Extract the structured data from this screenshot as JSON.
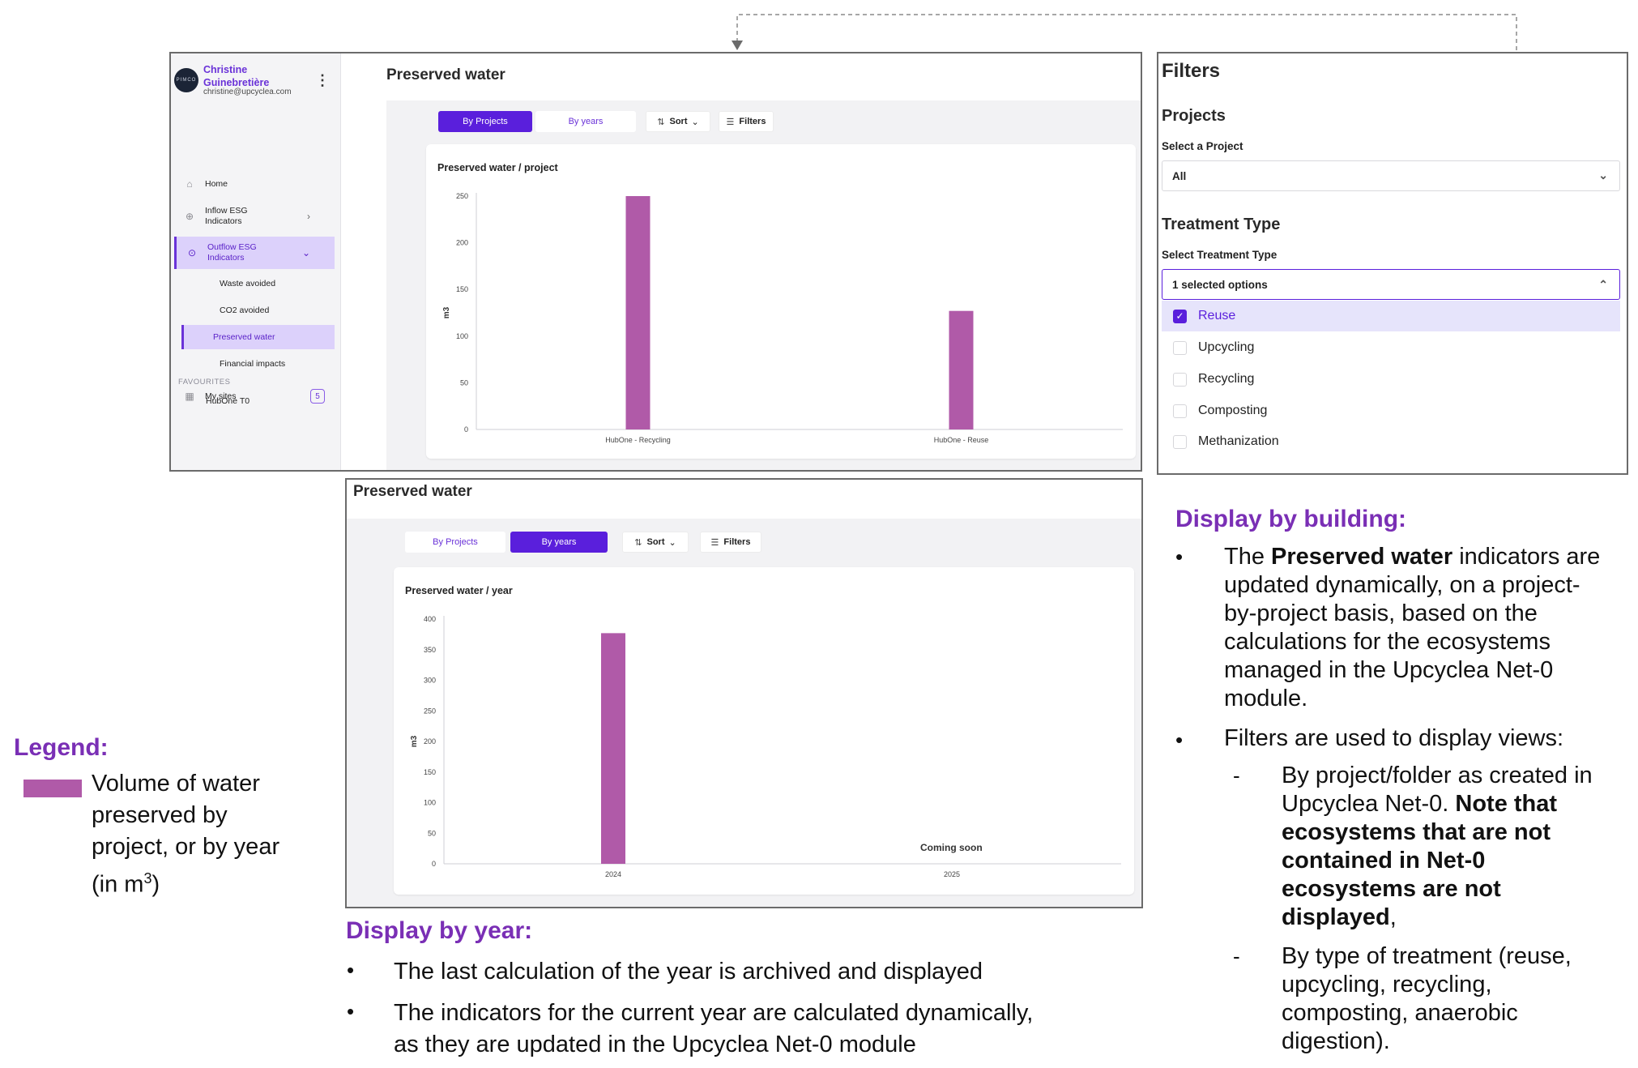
{
  "sidebar": {
    "avatar_text": "PIMCO",
    "user_name": "Christine Guinebretière",
    "user_email": "christine@upcyclea.com",
    "nav": {
      "home": "Home",
      "inflow": "Inflow ESG Indicators",
      "outflow": "Outflow ESG Indicators",
      "sub_waste": "Waste avoided",
      "sub_co2": "CO2 avoided",
      "sub_water": "Preserved water",
      "sub_financial": "Financial impacts",
      "my_sites": "My sites",
      "my_sites_count": "5"
    },
    "favourites_title": "FAVOURITES",
    "favourite_item": "HubOne T0"
  },
  "top_view": {
    "page_title": "Preserved water",
    "tab_projects": "By Projects",
    "tab_years": "By years",
    "sort_label": "Sort",
    "filters_label": "Filters",
    "card_title": "Preserved water / project"
  },
  "bottom_view": {
    "page_title": "Preserved water",
    "tab_projects": "By Projects",
    "tab_years": "By years",
    "sort_label": "Sort",
    "filters_label": "Filters",
    "card_title": "Preserved water / year",
    "coming_soon": "Coming soon"
  },
  "chart_data": [
    {
      "type": "bar",
      "title": "Preserved water / project",
      "ylabel": "m3",
      "categories": [
        "HubOne - Recycling",
        "HubOne - Reuse"
      ],
      "values": [
        250,
        127
      ],
      "ylim": [
        0,
        250
      ],
      "yticks": [
        0,
        50,
        100,
        150,
        200,
        250
      ],
      "color": "#b05aa8"
    },
    {
      "type": "bar",
      "title": "Preserved water / year",
      "ylabel": "m3",
      "categories": [
        "2024",
        "2025"
      ],
      "values": [
        377,
        null
      ],
      "ylim": [
        0,
        400
      ],
      "yticks": [
        0,
        50,
        100,
        150,
        200,
        250,
        300,
        350,
        400
      ],
      "color": "#b05aa8"
    }
  ],
  "filters_panel": {
    "title": "Filters",
    "projects_heading": "Projects",
    "project_label": "Select a Project",
    "project_value": "All",
    "treatment_heading": "Treatment Type",
    "treatment_label": "Select Treatment Type",
    "treatment_value": "1 selected options",
    "options": [
      {
        "label": "Reuse",
        "checked": true
      },
      {
        "label": "Upcycling",
        "checked": false
      },
      {
        "label": "Recycling",
        "checked": false
      },
      {
        "label": "Composting",
        "checked": false
      },
      {
        "label": "Methanization",
        "checked": false
      }
    ]
  },
  "legend": {
    "title": "Legend:",
    "line1": "Volume of water",
    "line2": "preserved by",
    "line3": "project, or by year",
    "line4_pre": "(in m",
    "line4_sup": "3",
    "line4_post": ")",
    "swatch_color": "#b05aa8"
  },
  "display_by_year": {
    "title": "Display by year:",
    "bullet1": "The last calculation of the year is archived and displayed",
    "bullet2_l1": "The indicators for the current year are calculated dynamically,",
    "bullet2_l2": "as they are updated in the Upcyclea Net-0 module"
  },
  "display_by_building": {
    "title": "Display by building:",
    "b1_l1_pre": "The",
    "b1_l1_bold": "Preserved water",
    "b1_l1_post": "indicators are",
    "b1_l2": "updated dynamically, on a project-",
    "b1_l3": "by-project basis, based on the",
    "b1_l4": "calculations for the ecosystems",
    "b1_l5": "managed in the Upcyclea Net-0",
    "b1_l6": "module.",
    "b2": "Filters are used to display views:",
    "d1_l1": "By project/folder as created in",
    "d1_l2_pre": "Upcyclea Net-0.",
    "d1_l2_bold": "Note that",
    "d1_l3": "ecosystems that are not",
    "d1_l4": "contained in Net-0",
    "d1_l5": "ecosystems are not",
    "d1_l6_bold": "displayed",
    "d1_l6_post": ",",
    "d2_l1": "By type of treatment (reuse,",
    "d2_l2": "upcycling, recycling,",
    "d2_l3": "composting, anaerobic",
    "d2_l4": "digestion)."
  }
}
